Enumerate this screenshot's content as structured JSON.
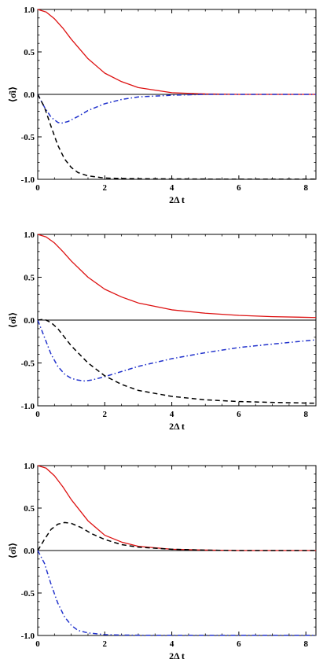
{
  "chart_data": [
    {
      "type": "line",
      "xlabel": "2Δ t",
      "ylabel": "⟨σ̂i⟩",
      "xlim": [
        0,
        8.3
      ],
      "ylim": [
        -1.0,
        1.0
      ],
      "xticks": [
        "0",
        "2",
        "4",
        "6",
        "8"
      ],
      "yticks": [
        "1.0",
        "0.5",
        "0.0",
        "-0.5",
        "-1.0"
      ],
      "zero_line": true,
      "series": [
        {
          "style": "solid",
          "color": "#dd1111",
          "x": [
            0,
            0.25,
            0.5,
            0.75,
            1.0,
            1.5,
            2.0,
            2.5,
            3.0,
            4.0,
            5.0,
            6.0,
            7.0,
            8.3
          ],
          "y": [
            1.0,
            0.97,
            0.89,
            0.78,
            0.65,
            0.42,
            0.25,
            0.15,
            0.08,
            0.02,
            0.005,
            0.0,
            0.0,
            0.0
          ]
        },
        {
          "style": "dashdot",
          "color": "#2233cc",
          "x": [
            0,
            0.2,
            0.4,
            0.6,
            0.7,
            0.9,
            1.2,
            1.5,
            2.0,
            2.5,
            3.0,
            4.0,
            5.0,
            6.0,
            8.3
          ],
          "y": [
            0.0,
            -0.15,
            -0.27,
            -0.33,
            -0.34,
            -0.32,
            -0.26,
            -0.19,
            -0.11,
            -0.06,
            -0.03,
            -0.01,
            0.0,
            0.0,
            0.0
          ]
        },
        {
          "style": "dashed",
          "color": "#000000",
          "x": [
            0,
            0.2,
            0.4,
            0.6,
            0.8,
            1.0,
            1.2,
            1.5,
            2.0,
            2.5,
            3.0,
            4.0,
            5.0,
            6.0,
            8.3
          ],
          "y": [
            0.0,
            -0.15,
            -0.38,
            -0.6,
            -0.76,
            -0.86,
            -0.92,
            -0.96,
            -0.985,
            -0.99,
            -0.993,
            -0.995,
            -0.997,
            -0.998,
            -0.998
          ]
        }
      ]
    },
    {
      "type": "line",
      "xlabel": "2Δ t",
      "ylabel": "⟨σ̂i⟩",
      "xlim": [
        0,
        8.3
      ],
      "ylim": [
        -1.0,
        1.0
      ],
      "xticks": [
        "0",
        "2",
        "4",
        "6",
        "8"
      ],
      "yticks": [
        "1.0",
        "0.5",
        "0.0",
        "-0.5",
        "-1.0"
      ],
      "zero_line": true,
      "series": [
        {
          "style": "solid",
          "color": "#dd1111",
          "x": [
            0,
            0.25,
            0.5,
            0.75,
            1.0,
            1.5,
            2.0,
            2.5,
            3.0,
            4.0,
            5.0,
            6.0,
            7.0,
            8.3
          ],
          "y": [
            1.0,
            0.97,
            0.9,
            0.8,
            0.69,
            0.5,
            0.36,
            0.27,
            0.2,
            0.12,
            0.08,
            0.055,
            0.04,
            0.03
          ]
        },
        {
          "style": "dashdot",
          "color": "#2233cc",
          "x": [
            0,
            0.2,
            0.4,
            0.6,
            0.8,
            1.0,
            1.2,
            1.4,
            1.6,
            2.0,
            2.5,
            3.0,
            4.0,
            5.0,
            6.0,
            7.0,
            8.3
          ],
          "y": [
            0.0,
            -0.2,
            -0.4,
            -0.54,
            -0.63,
            -0.68,
            -0.7,
            -0.71,
            -0.7,
            -0.66,
            -0.6,
            -0.54,
            -0.45,
            -0.38,
            -0.32,
            -0.28,
            -0.23
          ]
        },
        {
          "style": "dashed",
          "color": "#000000",
          "x": [
            0,
            0.2,
            0.4,
            0.6,
            0.8,
            1.0,
            1.5,
            2.0,
            2.5,
            3.0,
            4.0,
            5.0,
            6.0,
            7.0,
            8.3
          ],
          "y": [
            0.0,
            0.01,
            -0.03,
            -0.1,
            -0.2,
            -0.3,
            -0.5,
            -0.65,
            -0.75,
            -0.82,
            -0.89,
            -0.93,
            -0.95,
            -0.96,
            -0.97
          ]
        }
      ]
    },
    {
      "type": "line",
      "xlabel": "2Δ t",
      "ylabel": "⟨σ̂i⟩",
      "xlim": [
        0,
        8.3
      ],
      "ylim": [
        -1.0,
        1.0
      ],
      "xticks": [
        "0",
        "2",
        "4",
        "6",
        "8"
      ],
      "yticks": [
        "1.0",
        "0.5",
        "0.0",
        "-0.5",
        "-1.0"
      ],
      "zero_line": true,
      "series": [
        {
          "style": "solid",
          "color": "#dd1111",
          "x": [
            0,
            0.25,
            0.5,
            0.75,
            1.0,
            1.5,
            2.0,
            2.5,
            3.0,
            4.0,
            5.0,
            6.0,
            7.0,
            8.3
          ],
          "y": [
            1.0,
            0.97,
            0.88,
            0.75,
            0.6,
            0.35,
            0.18,
            0.1,
            0.05,
            0.015,
            0.005,
            0.0,
            0.0,
            0.0
          ]
        },
        {
          "style": "dashed",
          "color": "#000000",
          "x": [
            0,
            0.2,
            0.4,
            0.6,
            0.8,
            1.0,
            1.3,
            1.6,
            2.0,
            2.5,
            3.0,
            4.0,
            5.0,
            6.0,
            8.3
          ],
          "y": [
            0.0,
            0.13,
            0.25,
            0.31,
            0.33,
            0.32,
            0.27,
            0.2,
            0.13,
            0.07,
            0.04,
            0.015,
            0.005,
            0.0,
            0.0
          ]
        },
        {
          "style": "dashdot",
          "color": "#2233cc",
          "x": [
            0,
            0.2,
            0.4,
            0.6,
            0.8,
            1.0,
            1.2,
            1.5,
            2.0,
            2.5,
            3.0,
            4.0,
            5.0,
            6.0,
            8.3
          ],
          "y": [
            0.0,
            -0.15,
            -0.4,
            -0.62,
            -0.78,
            -0.88,
            -0.94,
            -0.97,
            -0.99,
            -0.995,
            -0.997,
            -0.998,
            -0.998,
            -0.998,
            -0.998
          ]
        }
      ]
    }
  ]
}
